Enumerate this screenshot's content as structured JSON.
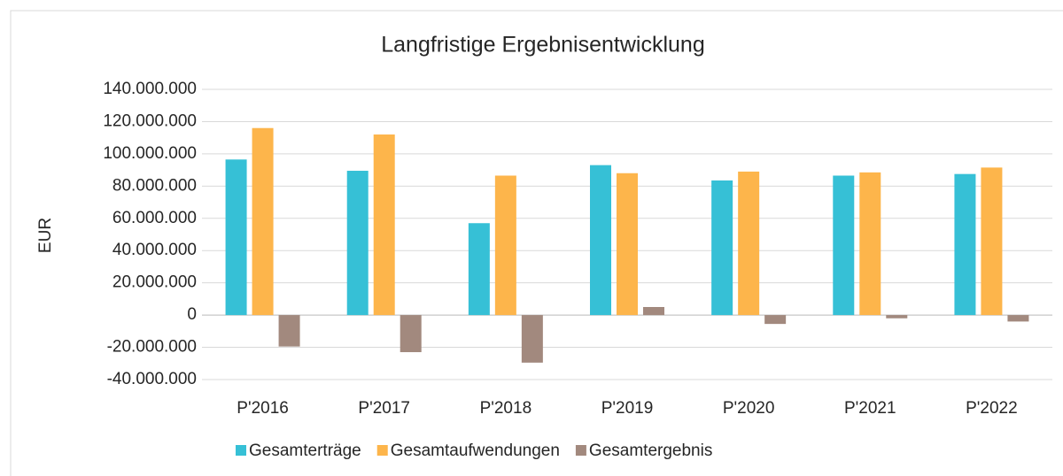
{
  "chart_data": {
    "type": "bar",
    "title": "Langfristige Ergebnisentwicklung",
    "y_label": "EUR",
    "categories": [
      "P'2016",
      "P'2017",
      "P'2018",
      "P'2019",
      "P'2020",
      "P'2021",
      "P'2022"
    ],
    "series": [
      {
        "name": "Gesamterträge",
        "color": "#36c0d6",
        "values": [
          96500000,
          89500000,
          57000000,
          93000000,
          83500000,
          86500000,
          87500000
        ]
      },
      {
        "name": "Gesamtaufwendungen",
        "color": "#fdb54b",
        "values": [
          116000000,
          112000000,
          86500000,
          88000000,
          89000000,
          88500000,
          91500000
        ]
      },
      {
        "name": "Gesamtergebnis",
        "color": "#a2897e",
        "values": [
          -19500000,
          -23000000,
          -29500000,
          5000000,
          -5500000,
          -2000000,
          -4000000
        ]
      }
    ],
    "ylim": [
      -40000000,
      140000000
    ],
    "yticks": [
      {
        "value": -40000000,
        "label": "-40.000.000"
      },
      {
        "value": -20000000,
        "label": "-20.000.000"
      },
      0,
      {
        "value": 20000000,
        "label": "20.000.000"
      },
      {
        "value": 40000000,
        "label": "40.000.000"
      },
      {
        "value": 60000000,
        "label": "60.000.000"
      },
      {
        "value": 80000000,
        "label": "80.000.000"
      },
      {
        "value": 100000000,
        "label": "100.000.000"
      },
      {
        "value": 120000000,
        "label": "120.000.000"
      },
      {
        "value": 140000000,
        "label": "140.000.000"
      }
    ],
    "grid": true,
    "legend": "bottom"
  }
}
